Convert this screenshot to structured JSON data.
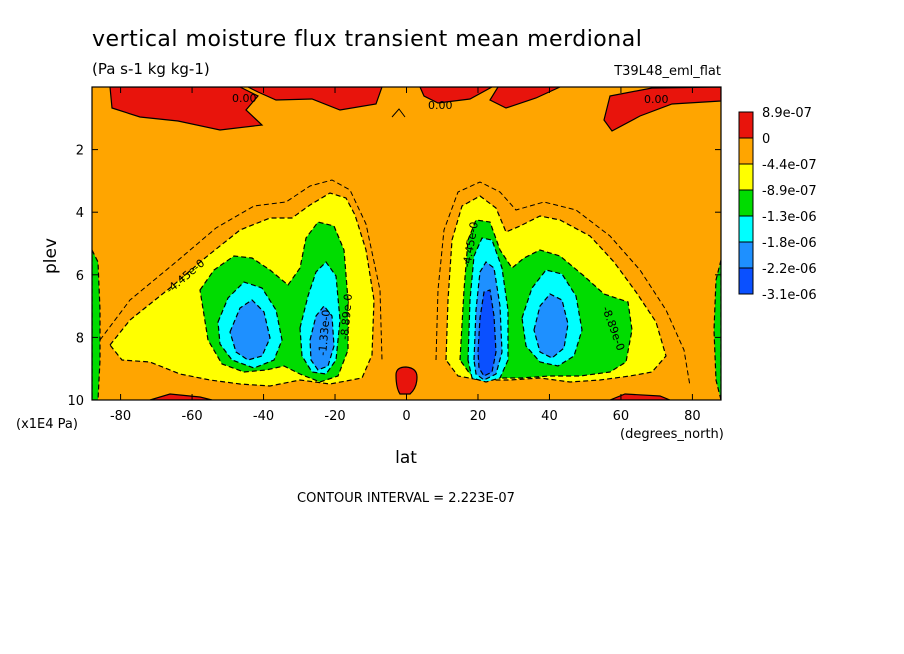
{
  "chart_data": {
    "type": "heatmap",
    "title": "vertical moisture flux transient mean merdional",
    "units": "(Pa s-1 kg kg-1)",
    "run_label": "T39L48_eml_flat",
    "xlabel": "lat",
    "x_units": "(degrees_north)",
    "ylabel": "plev",
    "y_units": "(x1E4 Pa)",
    "footer": "CONTOUR INTERVAL = 2.223E-07",
    "xlim": [
      -88,
      88
    ],
    "ylim": [
      10,
      0
    ],
    "x_ticks": [
      "-80",
      "-60",
      "-40",
      "-20",
      "0",
      "20",
      "40",
      "60",
      "80"
    ],
    "y_ticks": [
      "2",
      "4",
      "6",
      "8",
      "10"
    ],
    "colorbar": {
      "labels": [
        "8.9e-07",
        "0",
        "-4.4e-07",
        "-8.9e-07",
        "-1.3e-06",
        "-1.8e-06",
        "-2.2e-06",
        "-3.1e-06"
      ],
      "colors": [
        "#e8140c",
        "#ffa500",
        "#ffff00",
        "#00dc00",
        "#00ffff",
        "#1e90ff",
        "#0a50ff"
      ]
    },
    "contour_labels": [
      {
        "text": "0.00",
        "x": -47,
        "y": 0.4
      },
      {
        "text": "0.00",
        "x": 11,
        "y": 0.6
      },
      {
        "text": "0.00",
        "x": 70,
        "y": 0.4
      },
      {
        "text": "-4.45e-0",
        "x": -60,
        "y": 5.8
      },
      {
        "text": "-1.33e-0",
        "x": -22,
        "y": 7.3
      },
      {
        "text": "-8.89e-0",
        "x": -17,
        "y": 6.8
      },
      {
        "text": "-4.45e-0",
        "x": 19,
        "y": 5.5
      },
      {
        "text": "-8.89e-0",
        "x": 59,
        "y": 7.9
      }
    ]
  }
}
